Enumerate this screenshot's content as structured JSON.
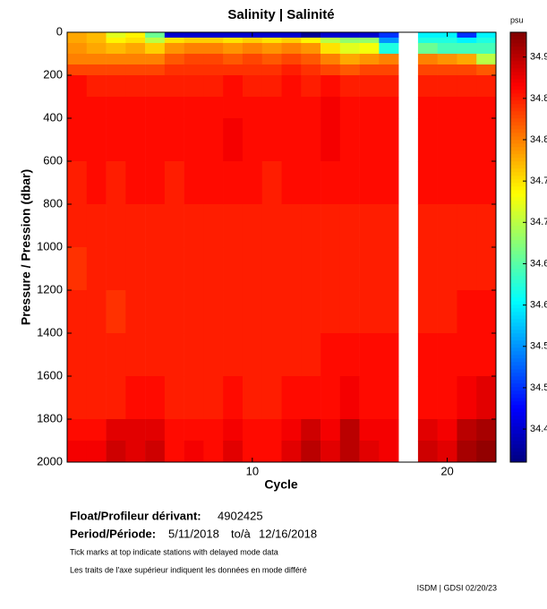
{
  "chart_data": {
    "type": "heatmap",
    "title": "Salinity | Salinité",
    "xlabel": "Cycle",
    "ylabel": "Pressure / Pression (dbar)",
    "colorbar_label": "psu",
    "x": [
      1,
      2,
      3,
      4,
      5,
      6,
      7,
      8,
      9,
      10,
      11,
      12,
      13,
      14,
      15,
      16,
      17,
      19,
      20,
      21,
      22
    ],
    "bins": [
      0,
      25,
      50,
      100,
      150,
      200,
      300,
      400,
      600,
      800,
      1000,
      1200,
      1400,
      1600,
      1800,
      1900,
      2000
    ],
    "z": [
      [
        34.78,
        34.78,
        34.79,
        34.8,
        34.83,
        34.86,
        34.86,
        34.86,
        34.85,
        34.85,
        34.84,
        34.85,
        34.85,
        34.85,
        34.86,
        34.87
      ],
      [
        34.77,
        34.77,
        34.78,
        34.8,
        34.83,
        34.85,
        34.86,
        34.86,
        34.86,
        34.85,
        34.85,
        34.85,
        34.85,
        34.85,
        34.86,
        34.87
      ],
      [
        34.72,
        34.74,
        34.77,
        34.8,
        34.83,
        34.85,
        34.86,
        34.86,
        34.85,
        34.85,
        34.85,
        34.84,
        34.85,
        34.85,
        34.88,
        34.89
      ],
      [
        34.74,
        34.75,
        34.78,
        34.8,
        34.83,
        34.85,
        34.86,
        34.86,
        34.86,
        34.85,
        34.85,
        34.85,
        34.85,
        34.86,
        34.88,
        34.88
      ],
      [
        34.66,
        34.7,
        34.76,
        34.8,
        34.83,
        34.85,
        34.86,
        34.86,
        34.86,
        34.85,
        34.85,
        34.85,
        34.85,
        34.86,
        34.88,
        34.89
      ],
      [
        34.45,
        34.75,
        34.79,
        34.82,
        34.84,
        34.85,
        34.86,
        34.86,
        34.85,
        34.85,
        34.85,
        34.85,
        34.85,
        34.85,
        34.86,
        34.86
      ],
      [
        34.45,
        34.76,
        34.8,
        34.83,
        34.84,
        34.85,
        34.86,
        34.86,
        34.86,
        34.85,
        34.85,
        34.85,
        34.85,
        34.85,
        34.86,
        34.87
      ],
      [
        34.45,
        34.76,
        34.8,
        34.83,
        34.84,
        34.85,
        34.86,
        34.86,
        34.86,
        34.85,
        34.85,
        34.85,
        34.85,
        34.85,
        34.86,
        34.86
      ],
      [
        34.45,
        34.75,
        34.79,
        34.82,
        34.84,
        34.86,
        34.86,
        34.87,
        34.86,
        34.85,
        34.85,
        34.85,
        34.85,
        34.86,
        34.87,
        34.88
      ],
      [
        34.45,
        34.76,
        34.8,
        34.83,
        34.84,
        34.85,
        34.86,
        34.86,
        34.86,
        34.85,
        34.85,
        34.85,
        34.85,
        34.85,
        34.86,
        34.86
      ],
      [
        34.45,
        34.75,
        34.79,
        34.82,
        34.84,
        34.85,
        34.86,
        34.86,
        34.85,
        34.85,
        34.85,
        34.85,
        34.85,
        34.85,
        34.86,
        34.86
      ],
      [
        34.45,
        34.76,
        34.8,
        34.83,
        34.85,
        34.86,
        34.86,
        34.86,
        34.86,
        34.85,
        34.85,
        34.85,
        34.85,
        34.86,
        34.87,
        34.88
      ],
      [
        34.42,
        34.74,
        34.79,
        34.82,
        34.84,
        34.85,
        34.86,
        34.86,
        34.86,
        34.85,
        34.85,
        34.85,
        34.85,
        34.86,
        34.89,
        34.9
      ],
      [
        34.45,
        34.7,
        34.75,
        34.8,
        34.83,
        34.86,
        34.87,
        34.87,
        34.86,
        34.85,
        34.85,
        34.85,
        34.86,
        34.86,
        34.87,
        34.88
      ],
      [
        34.45,
        34.68,
        34.72,
        34.78,
        34.82,
        34.85,
        34.86,
        34.86,
        34.86,
        34.85,
        34.85,
        34.85,
        34.86,
        34.87,
        34.9,
        34.9
      ],
      [
        34.45,
        34.68,
        34.73,
        34.79,
        34.83,
        34.85,
        34.86,
        34.86,
        34.86,
        34.85,
        34.85,
        34.85,
        34.86,
        34.86,
        34.87,
        34.88
      ],
      [
        34.5,
        34.55,
        34.62,
        34.8,
        34.83,
        34.85,
        34.86,
        34.86,
        34.86,
        34.85,
        34.85,
        34.85,
        34.86,
        34.86,
        34.87,
        34.87
      ],
      [
        34.6,
        34.62,
        34.66,
        34.8,
        34.83,
        34.85,
        34.86,
        34.86,
        34.86,
        34.85,
        34.85,
        34.85,
        34.86,
        34.86,
        34.88,
        34.89
      ],
      [
        34.6,
        34.62,
        34.64,
        34.79,
        34.83,
        34.85,
        34.86,
        34.86,
        34.86,
        34.85,
        34.85,
        34.85,
        34.86,
        34.86,
        34.87,
        34.88
      ],
      [
        34.5,
        34.6,
        34.64,
        34.78,
        34.83,
        34.85,
        34.86,
        34.86,
        34.86,
        34.85,
        34.85,
        34.86,
        34.86,
        34.87,
        34.9,
        34.91
      ],
      [
        34.6,
        34.62,
        34.64,
        34.7,
        34.82,
        34.85,
        34.86,
        34.86,
        34.86,
        34.85,
        34.85,
        34.86,
        34.86,
        34.88,
        34.91,
        34.92
      ]
    ],
    "xlim": [
      0.5,
      22.5
    ],
    "xticks": [
      10,
      20
    ],
    "ylim": [
      2000,
      0
    ],
    "yticks": [
      0,
      200,
      400,
      600,
      800,
      1000,
      1200,
      1400,
      1600,
      1800,
      2000
    ],
    "clim": [
      34.41,
      34.93
    ],
    "cticks": [
      {
        "value": 34.9,
        "label": "34.9"
      },
      {
        "value": 34.85,
        "label": "34.8"
      },
      {
        "value": 34.8,
        "label": "34.8"
      },
      {
        "value": 34.75,
        "label": "34.7"
      },
      {
        "value": 34.7,
        "label": "34.7"
      },
      {
        "value": 34.65,
        "label": "34.6"
      },
      {
        "value": 34.6,
        "label": "34.6"
      },
      {
        "value": 34.55,
        "label": "34.5"
      },
      {
        "value": 34.5,
        "label": "34.5"
      },
      {
        "value": 34.45,
        "label": "34.4"
      }
    ],
    "colormap": "jet"
  },
  "footer": {
    "float_label": "Float/Profileur dérivant:",
    "float_id": "4902425",
    "period_label": "Period/Période:",
    "period_start": "5/11/2018",
    "period_sep": "to/à",
    "period_end": "12/16/2018",
    "note_en": "Tick marks at top indicate stations with delayed mode data",
    "note_fr": "Les traits de l'axe supérieur indiquent les données en mode différé",
    "credit": "ISDM | GDSI 02/20/23"
  }
}
